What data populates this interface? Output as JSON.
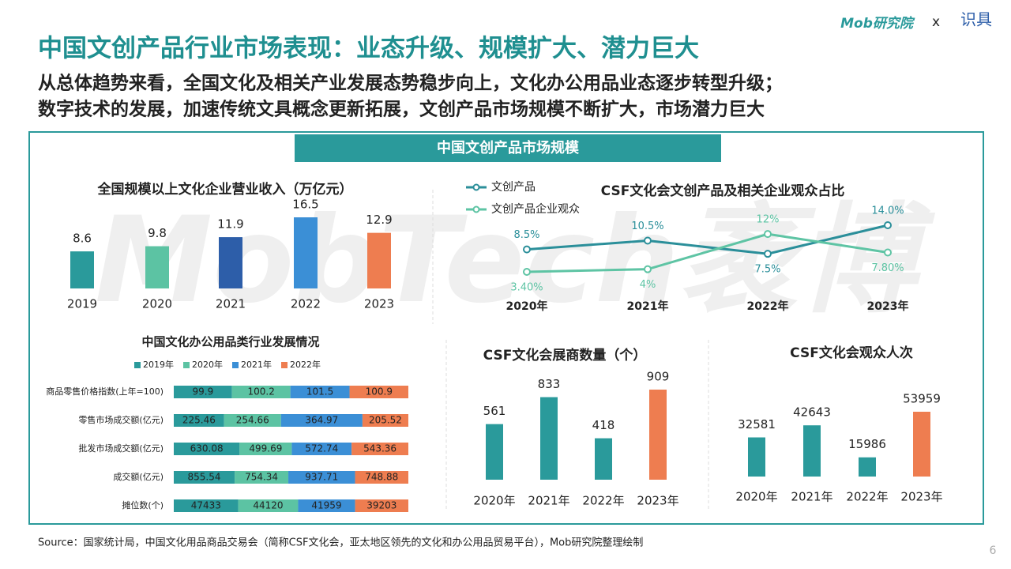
{
  "header": {
    "title": "中国文创产品行业市场表现：业态升级、规模扩大、潜力巨大",
    "subtitle": [
      "从总体趋势来看，全国文化及相关产业发展态势稳步向上，文化办公用品业态逐步转型升级；",
      "数字技术的发展，加速传统文具概念更新拓展，文创产品市场规模不断扩大，市场潜力巨大"
    ],
    "logo": "Mob研究院",
    "separator": "x",
    "partner": "识具"
  },
  "panel_title": "中国文创产品市场规模",
  "watermark": "MobTech袤博",
  "chart_data": [
    {
      "type": "bar",
      "title": "全国规模以上文化企业营业收入（万亿元）",
      "categories": [
        "2019",
        "2020",
        "2021",
        "2022",
        "2023"
      ],
      "values": [
        8.6,
        9.8,
        11.9,
        16.5,
        12.9
      ],
      "colors": [
        "#2a9a9b",
        "#5cc3a3",
        "#2d5ea9",
        "#3b8fd6",
        "#ee7d50"
      ]
    },
    {
      "type": "line",
      "title": "CSF文化会文创产品及相关企业观众占比",
      "categories": [
        "2020年",
        "2021年",
        "2022年",
        "2023年"
      ],
      "series": [
        {
          "name": "文创产品",
          "color": "#2b8f9a",
          "values": [
            8.5,
            10.5,
            7.5,
            14.0
          ],
          "value_labels": [
            "8.5%",
            "10.5%",
            "7.5%",
            "14.0%"
          ]
        },
        {
          "name": "文创产品企业观众",
          "color": "#5ec4a4",
          "values": [
            3.4,
            4,
            12,
            7.8
          ],
          "value_labels": [
            "3.40%",
            "4%",
            "12%",
            "7.80%"
          ]
        }
      ]
    },
    {
      "type": "stacked-bar",
      "title": "中国文化办公用品类行业发展情况",
      "categories": [
        "商品零售价格指数(上年=100)",
        "零售市场成交额(亿元)",
        "批发市场成交额(亿元)",
        "成交额(亿元)",
        "摊位数(个)"
      ],
      "series": [
        {
          "name": "2019年",
          "color": "#2a9a9b",
          "values": [
            99.9,
            225.46,
            630.08,
            855.54,
            47433
          ]
        },
        {
          "name": "2020年",
          "color": "#5cc3a3",
          "values": [
            100.2,
            254.66,
            499.69,
            754.34,
            44120
          ]
        },
        {
          "name": "2021年",
          "color": "#3b8fd6",
          "values": [
            101.5,
            364.97,
            572.74,
            937.71,
            41959
          ]
        },
        {
          "name": "2022年",
          "color": "#ee7d50",
          "values": [
            100.9,
            205.52,
            543.36,
            748.88,
            39203
          ]
        }
      ]
    },
    {
      "type": "bar",
      "title": "CSF文化会展商数量（个）",
      "categories": [
        "2020年",
        "2021年",
        "2022年",
        "2023年"
      ],
      "values": [
        561,
        833,
        418,
        909
      ],
      "colors": [
        "#2a9a9b",
        "#2a9a9b",
        "#2a9a9b",
        "#ee7d50"
      ]
    },
    {
      "type": "bar",
      "title": "CSF文化会观众人次",
      "categories": [
        "2020年",
        "2021年",
        "2022年",
        "2023年"
      ],
      "values": [
        32581,
        42643,
        15986,
        53959
      ],
      "colors": [
        "#2a9a9b",
        "#2a9a9b",
        "#2a9a9b",
        "#ee7d50"
      ]
    }
  ],
  "source": "Source：国家统计局，中国文化用品商品交易会（简称CSF文化会，亚太地区领先的文化和办公用品贸易平台），Mob研究院整理绘制",
  "page_number": "6"
}
